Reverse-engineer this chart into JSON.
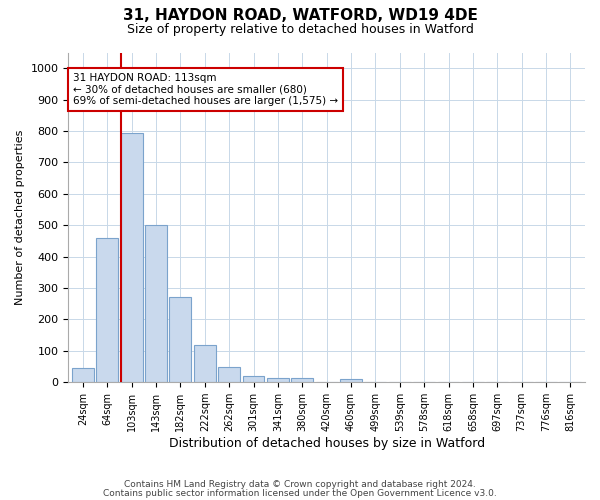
{
  "title_line1": "31, HAYDON ROAD, WATFORD, WD19 4DE",
  "title_line2": "Size of property relative to detached houses in Watford",
  "xlabel": "Distribution of detached houses by size in Watford",
  "ylabel": "Number of detached properties",
  "categories": [
    "24sqm",
    "64sqm",
    "103sqm",
    "143sqm",
    "182sqm",
    "222sqm",
    "262sqm",
    "301sqm",
    "341sqm",
    "380sqm",
    "420sqm",
    "460sqm",
    "499sqm",
    "539sqm",
    "578sqm",
    "618sqm",
    "658sqm",
    "697sqm",
    "737sqm",
    "776sqm",
    "816sqm"
  ],
  "values": [
    45,
    460,
    795,
    500,
    270,
    120,
    50,
    20,
    12,
    12,
    0,
    10,
    0,
    0,
    0,
    0,
    0,
    0,
    0,
    0,
    0
  ],
  "bar_color": "#c9d9ed",
  "bar_edge_color": "#7ba3cc",
  "highlight_line_color": "#cc0000",
  "annotation_text": "31 HAYDON ROAD: 113sqm\n← 30% of detached houses are smaller (680)\n69% of semi-detached houses are larger (1,575) →",
  "annotation_box_color": "#ffffff",
  "annotation_box_edge": "#cc0000",
  "ylim": [
    0,
    1050
  ],
  "yticks": [
    0,
    100,
    200,
    300,
    400,
    500,
    600,
    700,
    800,
    900,
    1000
  ],
  "footnote1": "Contains HM Land Registry data © Crown copyright and database right 2024.",
  "footnote2": "Contains public sector information licensed under the Open Government Licence v3.0.",
  "bg_color": "#ffffff",
  "grid_color": "#c8d8e8"
}
